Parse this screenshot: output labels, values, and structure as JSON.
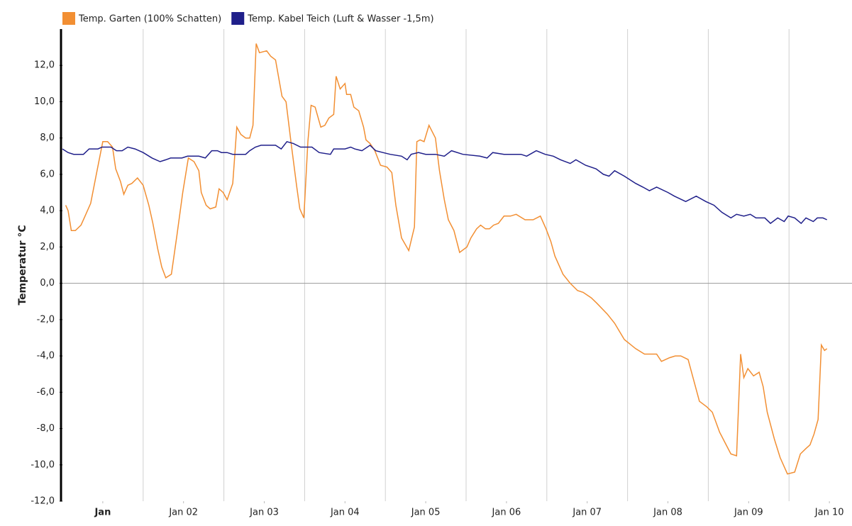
{
  "chart_data": {
    "type": "line",
    "y_label": "Temperatur °C",
    "xlim": [
      0,
      9.78
    ],
    "ylim": [
      -12,
      14
    ],
    "xticks": [
      {
        "value": 0.5,
        "label": "Jan"
      },
      {
        "value": 1.5,
        "label": "Jan 02"
      },
      {
        "value": 2.5,
        "label": "Jan 03"
      },
      {
        "value": 3.5,
        "label": "Jan 04"
      },
      {
        "value": 4.5,
        "label": "Jan 05"
      },
      {
        "value": 5.5,
        "label": "Jan 06"
      },
      {
        "value": 6.5,
        "label": "Jan 07"
      },
      {
        "value": 7.5,
        "label": "Jan 08"
      },
      {
        "value": 8.5,
        "label": "Jan 09"
      },
      {
        "value": 9.5,
        "label": "Jan 10"
      }
    ],
    "xgrid": [
      1,
      2,
      3,
      4,
      5,
      6,
      7,
      8,
      9
    ],
    "yticks": [
      {
        "value": -12,
        "label": "-12,0"
      },
      {
        "value": -10,
        "label": "-10,0"
      },
      {
        "value": -8,
        "label": "-8,0"
      },
      {
        "value": -6,
        "label": "-6,0"
      },
      {
        "value": -4,
        "label": "-4,0"
      },
      {
        "value": -2,
        "label": "-2,0"
      },
      {
        "value": 0,
        "label": "0,0"
      },
      {
        "value": 2,
        "label": "2,0"
      },
      {
        "value": 4,
        "label": "4,0"
      },
      {
        "value": 6,
        "label": "6,0"
      },
      {
        "value": 8,
        "label": "8,0"
      },
      {
        "value": 10,
        "label": "10,0"
      },
      {
        "value": 12,
        "label": "12,0"
      }
    ],
    "legend": "top-left",
    "series": [
      {
        "name": "Temp. Garten (100% Schatten)",
        "color": "#f28f33",
        "x": [
          0.04,
          0.07,
          0.11,
          0.16,
          0.23,
          0.28,
          0.35,
          0.42,
          0.5,
          0.56,
          0.62,
          0.66,
          0.72,
          0.76,
          0.81,
          0.86,
          0.93,
          1.0,
          1.07,
          1.12,
          1.18,
          1.23,
          1.28,
          1.35,
          1.42,
          1.49,
          1.56,
          1.63,
          1.69,
          1.72,
          1.78,
          1.83,
          1.9,
          1.94,
          1.99,
          2.04,
          2.11,
          2.16,
          2.21,
          2.27,
          2.32,
          2.36,
          2.4,
          2.44,
          2.53,
          2.58,
          2.64,
          2.72,
          2.77,
          2.83,
          2.9,
          2.94,
          2.99,
          3.04,
          3.08,
          3.13,
          3.2,
          3.25,
          3.3,
          3.36,
          3.39,
          3.44,
          3.5,
          3.52,
          3.57,
          3.61,
          3.67,
          3.73,
          3.76,
          3.81,
          3.87,
          3.94,
          4.02,
          4.08,
          4.13,
          4.2,
          4.29,
          4.36,
          4.39,
          4.43,
          4.48,
          4.54,
          4.62,
          4.67,
          4.73,
          4.78,
          4.85,
          4.92,
          5.01,
          5.06,
          5.13,
          5.18,
          5.24,
          5.29,
          5.34,
          5.4,
          5.47,
          5.55,
          5.62,
          5.73,
          5.83,
          5.92,
          5.99,
          6.05,
          6.1,
          6.2,
          6.29,
          6.38,
          6.45,
          6.55,
          6.62,
          6.75,
          6.84,
          6.96,
          7.1,
          7.21,
          7.36,
          7.42,
          7.52,
          7.59,
          7.66,
          7.75,
          7.89,
          7.98,
          8.05,
          8.14,
          8.21,
          8.28,
          8.35,
          8.4,
          8.44,
          8.49,
          8.56,
          8.63,
          8.68,
          8.73,
          8.82,
          8.89,
          8.98,
          9.07,
          9.14,
          9.21,
          9.26,
          9.31,
          9.36,
          9.4,
          9.44,
          9.47
        ],
        "values": [
          4.3,
          4.0,
          2.9,
          2.9,
          3.2,
          3.7,
          4.4,
          6.0,
          7.8,
          7.8,
          7.5,
          6.3,
          5.6,
          4.9,
          5.4,
          5.5,
          5.8,
          5.4,
          4.3,
          3.3,
          1.9,
          0.9,
          0.3,
          0.5,
          2.7,
          5.0,
          6.9,
          6.7,
          6.2,
          5.0,
          4.3,
          4.1,
          4.2,
          5.2,
          5.0,
          4.6,
          5.5,
          8.6,
          8.2,
          8.0,
          8.0,
          8.7,
          13.2,
          12.7,
          12.8,
          12.5,
          12.3,
          10.3,
          10.0,
          7.8,
          5.4,
          4.1,
          3.6,
          7.8,
          9.8,
          9.7,
          8.6,
          8.7,
          9.1,
          9.3,
          11.4,
          10.7,
          11.0,
          10.4,
          10.4,
          9.7,
          9.5,
          8.6,
          7.9,
          7.7,
          7.3,
          6.5,
          6.4,
          6.1,
          4.3,
          2.5,
          1.8,
          3.1,
          7.8,
          7.9,
          7.8,
          8.7,
          8.0,
          6.2,
          4.6,
          3.5,
          2.9,
          1.7,
          2.0,
          2.5,
          3.0,
          3.2,
          3.0,
          3.0,
          3.2,
          3.3,
          3.7,
          3.7,
          3.8,
          3.5,
          3.5,
          3.7,
          3.0,
          2.3,
          1.5,
          0.5,
          0.0,
          -0.4,
          -0.5,
          -0.8,
          -1.1,
          -1.7,
          -2.2,
          -3.1,
          -3.6,
          -3.9,
          -3.9,
          -4.3,
          -4.1,
          -4.0,
          -4.0,
          -4.2,
          -6.5,
          -6.8,
          -7.1,
          -8.2,
          -8.8,
          -9.4,
          -9.5,
          -3.9,
          -5.2,
          -4.7,
          -5.1,
          -4.9,
          -5.7,
          -7.1,
          -8.6,
          -9.6,
          -10.5,
          -10.4,
          -9.4,
          -9.1,
          -8.9,
          -8.3,
          -7.5,
          -3.4,
          -3.7,
          -3.6
        ]
      },
      {
        "name": "Temp. Kabel Teich (Luft & Wasser -1,5m)",
        "color": "#1f1f8a",
        "x": [
          0.0,
          0.07,
          0.14,
          0.26,
          0.33,
          0.44,
          0.49,
          0.6,
          0.67,
          0.74,
          0.81,
          0.9,
          1.0,
          1.11,
          1.21,
          1.28,
          1.34,
          1.48,
          1.55,
          1.69,
          1.77,
          1.85,
          1.92,
          1.97,
          2.04,
          2.11,
          2.27,
          2.32,
          2.39,
          2.46,
          2.64,
          2.71,
          2.78,
          2.86,
          2.95,
          3.09,
          3.18,
          3.32,
          3.36,
          3.5,
          3.57,
          3.62,
          3.71,
          3.81,
          3.88,
          3.97,
          4.06,
          4.2,
          4.27,
          4.32,
          4.41,
          4.5,
          4.62,
          4.73,
          4.82,
          4.96,
          5.17,
          5.26,
          5.33,
          5.47,
          5.68,
          5.75,
          5.87,
          5.98,
          6.08,
          6.17,
          6.29,
          6.36,
          6.48,
          6.61,
          6.7,
          6.77,
          6.84,
          6.96,
          7.1,
          7.19,
          7.27,
          7.36,
          7.5,
          7.58,
          7.72,
          7.85,
          7.97,
          8.07,
          8.17,
          8.28,
          8.35,
          8.44,
          8.52,
          8.59,
          8.7,
          8.77,
          8.86,
          8.94,
          8.99,
          9.07,
          9.15,
          9.21,
          9.3,
          9.35,
          9.42,
          9.47
        ],
        "values": [
          7.4,
          7.2,
          7.1,
          7.1,
          7.4,
          7.4,
          7.5,
          7.5,
          7.3,
          7.3,
          7.5,
          7.4,
          7.2,
          6.9,
          6.7,
          6.8,
          6.9,
          6.9,
          7.0,
          7.0,
          6.9,
          7.3,
          7.3,
          7.2,
          7.2,
          7.1,
          7.1,
          7.3,
          7.5,
          7.6,
          7.6,
          7.4,
          7.8,
          7.7,
          7.5,
          7.5,
          7.2,
          7.1,
          7.4,
          7.4,
          7.5,
          7.4,
          7.3,
          7.6,
          7.3,
          7.2,
          7.1,
          7.0,
          6.8,
          7.1,
          7.2,
          7.1,
          7.1,
          7.0,
          7.3,
          7.1,
          7.0,
          6.9,
          7.2,
          7.1,
          7.1,
          7.0,
          7.3,
          7.1,
          7.0,
          6.8,
          6.6,
          6.8,
          6.5,
          6.3,
          6.0,
          5.9,
          6.2,
          5.9,
          5.5,
          5.3,
          5.1,
          5.3,
          5.0,
          4.8,
          4.5,
          4.8,
          4.5,
          4.3,
          3.9,
          3.6,
          3.8,
          3.7,
          3.8,
          3.6,
          3.6,
          3.3,
          3.6,
          3.4,
          3.7,
          3.6,
          3.3,
          3.6,
          3.4,
          3.6,
          3.6,
          3.5
        ]
      }
    ]
  }
}
